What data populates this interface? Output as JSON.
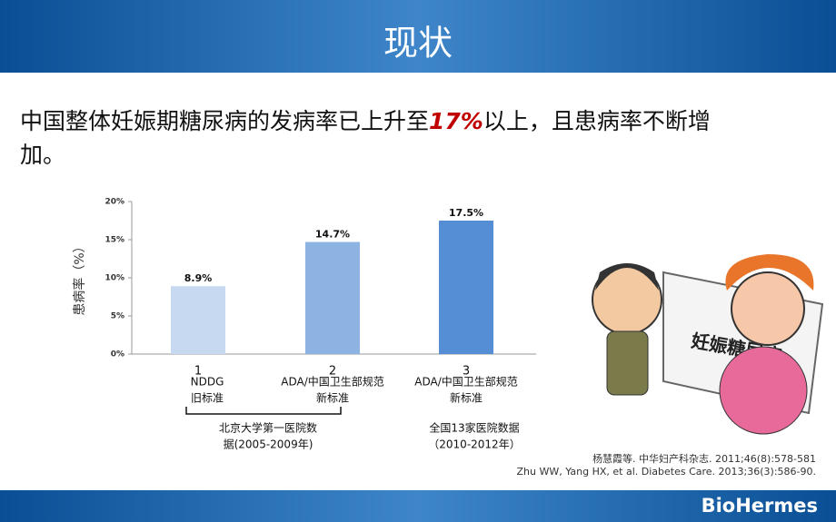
{
  "header": {
    "title": "现状"
  },
  "statement": {
    "before": "中国整体妊娠期糖尿病的发病率已上升至",
    "highlight": "17%",
    "after": "以上，且患病率不断增",
    "after2": "加。"
  },
  "chart_data": {
    "type": "bar",
    "y_label": "患病率（%）",
    "categories": [
      "1",
      "2",
      "3"
    ],
    "category_notes": [
      [
        "NDDG",
        "旧标准"
      ],
      [
        "ADA/中国卫生部规范",
        "新标准"
      ],
      [
        "ADA/中国卫生部规范",
        "新标准"
      ]
    ],
    "values": [
      8.9,
      14.7,
      17.5
    ],
    "value_labels": [
      "8.9%",
      "14.7%",
      "17.5%"
    ],
    "colors": [
      "#c6d9f0",
      "#8db3e2",
      "#558ed5"
    ],
    "ylim": [
      0,
      20
    ],
    "yticks": [
      {
        "value": 0,
        "label": "0%"
      },
      {
        "value": 5,
        "label": "5%"
      },
      {
        "value": 10,
        "label": "10%"
      },
      {
        "value": 15,
        "label": "15%"
      },
      {
        "value": 20,
        "label": "20%"
      }
    ],
    "groups": [
      [
        "北京大学第一医院数",
        "据(2005-2009年)"
      ],
      [
        "全国13家医院数据",
        "（2010-2012年）"
      ]
    ]
  },
  "illustration": {
    "sign": "妊娠糖尿病"
  },
  "references": [
    "杨慧霞等. 中华妇产科杂志. 2011;46(8):578-581",
    "Zhu WW, Yang HX, et al. Diabetes Care. 2013;36(3):586-90."
  ],
  "footer": {
    "brand": "BioHermes"
  }
}
